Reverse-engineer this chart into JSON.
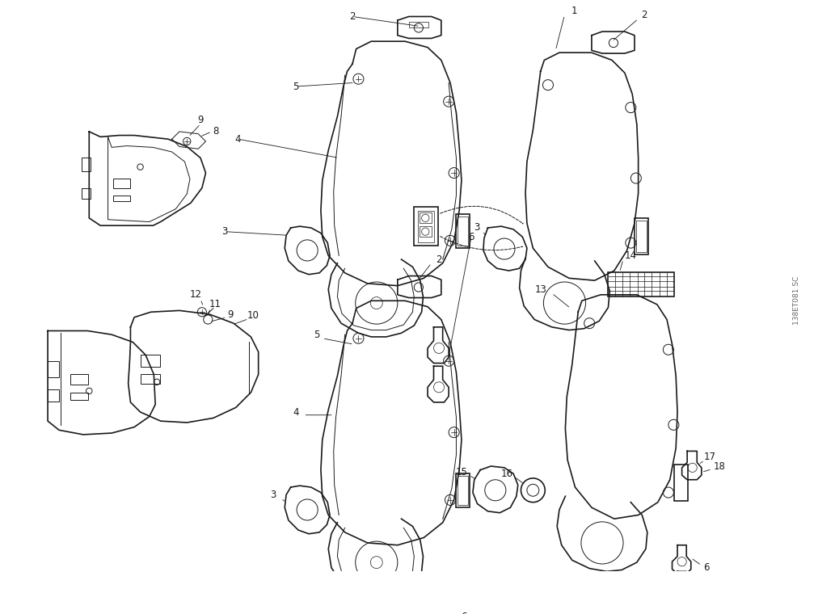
{
  "background_color": "#ffffff",
  "line_color": "#1a1a1a",
  "watermark": "138ET081 SC",
  "fig_width": 10.33,
  "fig_height": 7.6,
  "dpi": 100,
  "lw_main": 1.2,
  "lw_thin": 0.7,
  "lw_detail": 0.5,
  "font_size": 8.5
}
